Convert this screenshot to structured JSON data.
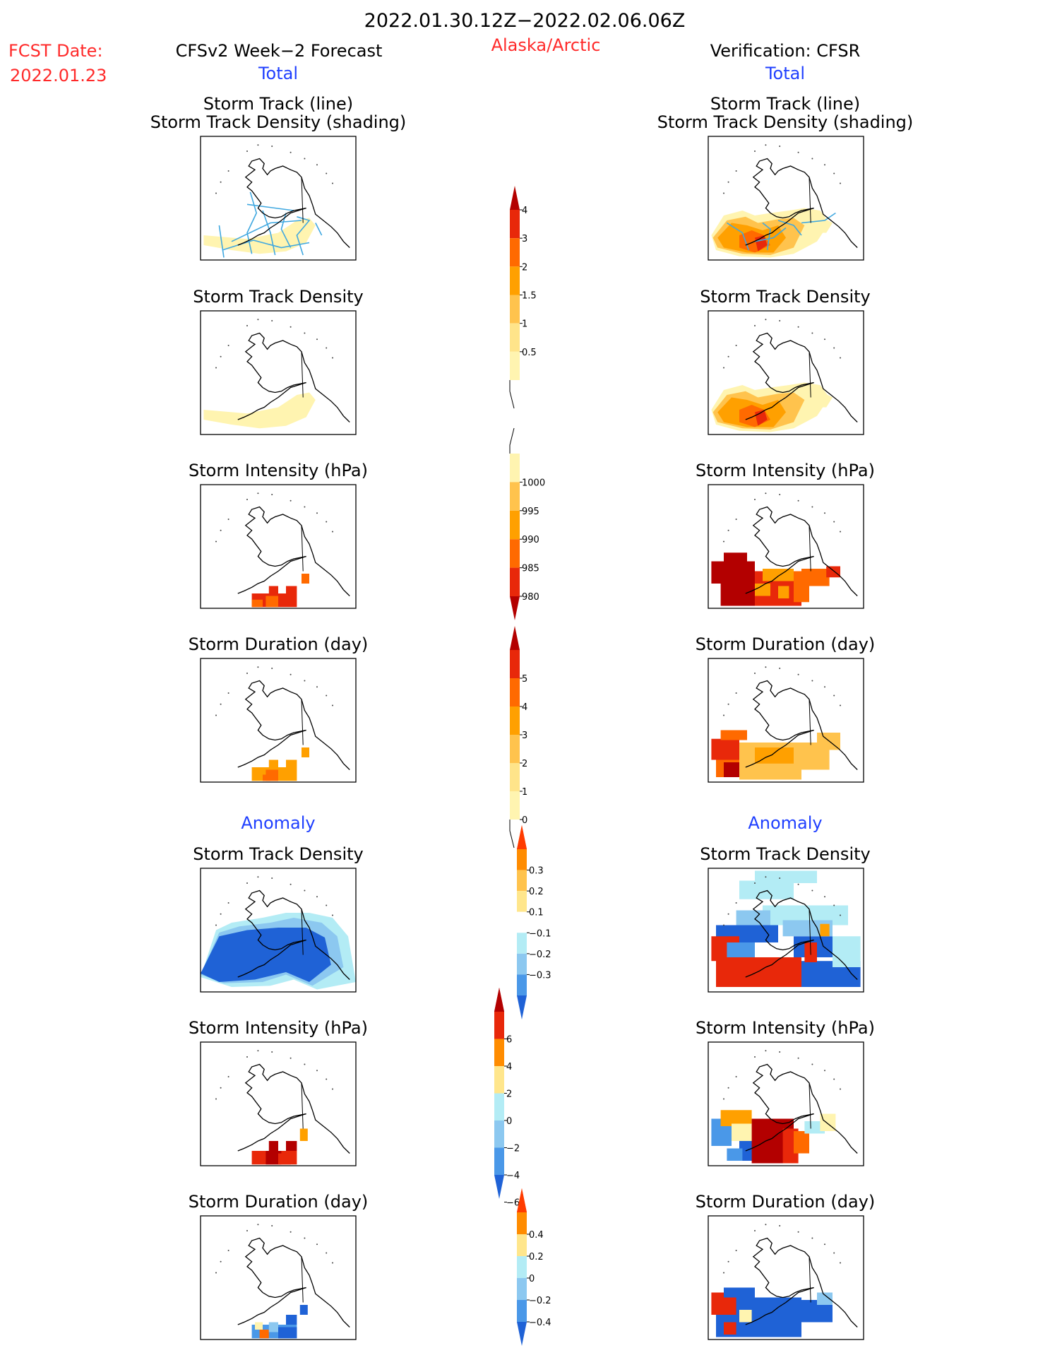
{
  "header": {
    "date_range": "2022.01.30.12Z−2022.02.06.06Z",
    "fcst_label": "FCST Date:",
    "fcst_date": "2022.01.23",
    "left_title": "CFSv2 Week−2 Forecast",
    "region": "Alaska/Arctic",
    "right_title": "Verification: CFSR"
  },
  "section_labels": {
    "total": "Total",
    "anomaly": "Anomaly"
  },
  "colors": {
    "red_text": "#ff2a2a",
    "blue_text": "#1f3fff",
    "pale_yellow": "#fff4b0",
    "light_orange": "#ffc34d",
    "orange": "#ffa000",
    "orange_red": "#ff6a00",
    "red": "#e8280a",
    "dark_red": "#b30000",
    "pale_blue": "#b3ecf5",
    "light_blue": "#8cc8f0",
    "mid_blue": "#4a98e8",
    "blue": "#1f62d6",
    "track_line": "#40a8e0"
  },
  "panels": [
    {
      "col": "left",
      "row": 0,
      "title": [
        "Storm Track (line)",
        "Storm Track Density (shading)"
      ],
      "field": "fc_total_std",
      "tracks": true
    },
    {
      "col": "right",
      "row": 0,
      "title": [
        "Storm Track (line)",
        "Storm Track Density (shading)"
      ],
      "field": "ob_total_std",
      "tracks": true
    },
    {
      "col": "left",
      "row": 1,
      "title": [
        "Storm Track Density"
      ],
      "field": "fc_total_std"
    },
    {
      "col": "right",
      "row": 1,
      "title": [
        "Storm Track Density"
      ],
      "field": "ob_total_std"
    },
    {
      "col": "left",
      "row": 2,
      "title": [
        "Storm Intensity (hPa)"
      ],
      "field": "fc_total_int"
    },
    {
      "col": "right",
      "row": 2,
      "title": [
        "Storm Intensity (hPa)"
      ],
      "field": "ob_total_int"
    },
    {
      "col": "left",
      "row": 3,
      "title": [
        "Storm Duration (day)"
      ],
      "field": "fc_total_dur"
    },
    {
      "col": "right",
      "row": 3,
      "title": [
        "Storm Duration (day)"
      ],
      "field": "ob_total_dur"
    },
    {
      "col": "left",
      "row": 4,
      "title": [
        "Storm Track Density"
      ],
      "field": "fc_anom_std"
    },
    {
      "col": "right",
      "row": 4,
      "title": [
        "Storm Track Density"
      ],
      "field": "ob_anom_std"
    },
    {
      "col": "left",
      "row": 5,
      "title": [
        "Storm Intensity (hPa)"
      ],
      "field": "fc_anom_int"
    },
    {
      "col": "right",
      "row": 5,
      "title": [
        "Storm Intensity (hPa)"
      ],
      "field": "ob_anom_int"
    },
    {
      "col": "left",
      "row": 6,
      "title": [
        "Storm Duration (day)"
      ],
      "field": "fc_anom_dur"
    },
    {
      "col": "right",
      "row": 6,
      "title": [
        "Storm Duration (day)"
      ],
      "field": "ob_anom_dur"
    }
  ],
  "colorbars": [
    {
      "id": "track_density",
      "labels": [
        "0.5",
        "1",
        "1.5",
        "2",
        "3",
        "4"
      ],
      "colors": [
        "#fff4b0",
        "#ffe48a",
        "#ffc34d",
        "#ffa000",
        "#ff6a00",
        "#e8280a",
        "#b30000"
      ],
      "arrow": "top",
      "tail": "bottom"
    },
    {
      "id": "intensity",
      "labels": [
        "1000",
        "995",
        "990",
        "985",
        "980"
      ],
      "colors": [
        "#fff4b0",
        "#ffc34d",
        "#ffa000",
        "#ff6a00",
        "#e8280a",
        "#b30000"
      ],
      "arrow": "bottom",
      "tail": "top"
    },
    {
      "id": "duration",
      "labels": [
        "0",
        "1",
        "2",
        "3",
        "4",
        "5"
      ],
      "colors": [
        "#fff4b0",
        "#ffe48a",
        "#ffc34d",
        "#ffa000",
        "#ff6a00",
        "#e8280a",
        "#b30000"
      ],
      "arrow": "top",
      "tail": "bottom"
    },
    {
      "id": "anom_density",
      "labels": [
        "0.3",
        "0.2",
        "0.1",
        "−0.1",
        "−0.2",
        "−0.3"
      ],
      "colors": [
        "#ff3c00",
        "#ff8c00",
        "#ffc34d",
        "#ffe68c",
        "#ffffff",
        "#b3ecf5",
        "#8cc8f0",
        "#4a98e8",
        "#1f62d6"
      ],
      "arrow": "both"
    },
    {
      "id": "anom_intensity",
      "labels": [
        "6",
        "4",
        "2",
        "0",
        "−2",
        "−4",
        "−6"
      ],
      "colors": [
        "#b30000",
        "#e8280a",
        "#ff8c00",
        "#ffe68c",
        "#b3ecf5",
        "#8cc8f0",
        "#4a98e8",
        "#1f62d6"
      ],
      "arrow": "both"
    },
    {
      "id": "anom_duration",
      "labels": [
        "0.4",
        "0.2",
        "0",
        "−0.2",
        "−0.4"
      ],
      "colors": [
        "#ff3c00",
        "#ff8c00",
        "#ffe68c",
        "#b3ecf5",
        "#8cc8f0",
        "#4a98e8",
        "#1f62d6"
      ],
      "arrow": "both"
    }
  ],
  "chart_data": {
    "type": "heatmap",
    "title": "2022.01.30.12Z−2022.02.06.06Z",
    "subtitle": "Alaska/Arctic",
    "panel_titles": [
      "Storm Track Density",
      "Storm Intensity (hPa)",
      "Storm Duration (day)"
    ],
    "sources": [
      "CFSv2 Week−2 Forecast",
      "Verification: CFSR"
    ],
    "legends": {
      "total_track_density": [
        0.5,
        1,
        1.5,
        2,
        3,
        4
      ],
      "total_intensity_hPa": [
        1000,
        995,
        990,
        985,
        980
      ],
      "total_duration_day": [
        0,
        1,
        2,
        3,
        4,
        5
      ],
      "anomaly_track_density": [
        0.3,
        0.2,
        0.1,
        -0.1,
        -0.2,
        -0.3
      ],
      "anomaly_intensity_hPa": [
        6,
        4,
        2,
        0,
        -2,
        -4,
        -6
      ],
      "anomaly_duration_day": [
        0.4,
        0.2,
        0,
        -0.2,
        -0.4
      ]
    }
  }
}
